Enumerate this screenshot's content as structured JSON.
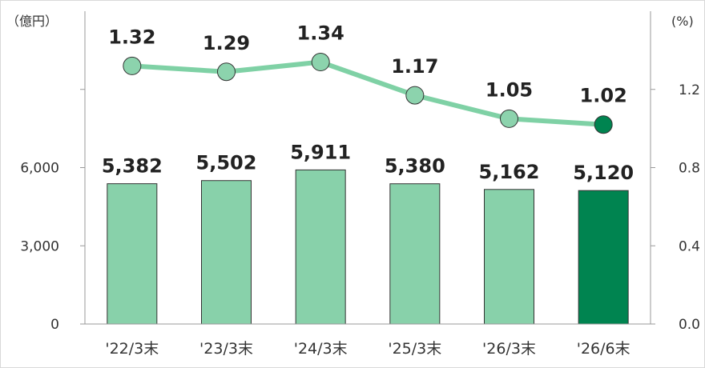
{
  "chart_data": {
    "type": "bar",
    "categories": [
      "'22/3末",
      "'23/3末",
      "'24/3末",
      "'25/3末",
      "'26/3末",
      "'26/6末"
    ],
    "series": [
      {
        "type": "bar",
        "axis": "left",
        "values": [
          5382,
          5502,
          5911,
          5380,
          5162,
          5120
        ],
        "labels": [
          "5,382",
          "5,502",
          "5,911",
          "5,380",
          "5,162",
          "5,120"
        ],
        "highlight_index": 5
      },
      {
        "type": "line",
        "axis": "right",
        "values": [
          1.32,
          1.29,
          1.34,
          1.17,
          1.05,
          1.02
        ],
        "labels": [
          "1.32",
          "1.29",
          "1.34",
          "1.17",
          "1.05",
          "1.02"
        ],
        "highlight_index": 5
      }
    ],
    "y_left": {
      "unit": "（億円）",
      "ylim": [
        0,
        12000
      ],
      "ticks": [
        0,
        3000,
        6000,
        9000
      ],
      "tick_labels": [
        "0",
        "3,000",
        "6,000",
        ""
      ]
    },
    "y_right": {
      "unit": "(%)",
      "ylim": [
        0.0,
        1.6
      ],
      "ticks": [
        0.0,
        0.4,
        0.8,
        1.2
      ],
      "tick_labels": [
        "0.0",
        "0.4",
        "0.8",
        "1.2"
      ]
    },
    "grid": false,
    "colors": {
      "bar": "#88d1aa",
      "bar_highlight": "#008450",
      "line": "#7fd1a5",
      "marker": "#8cd3ad",
      "marker_highlight": "#008450",
      "axis": "#999999"
    }
  }
}
